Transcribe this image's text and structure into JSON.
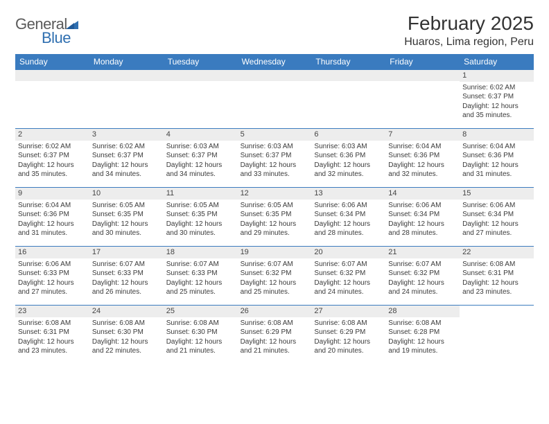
{
  "brand": {
    "part1": "General",
    "part2": "Blue"
  },
  "header": {
    "month_title": "February 2025",
    "location": "Huaros, Lima region, Peru"
  },
  "colors": {
    "header_bg": "#3a7bbf",
    "header_text": "#ffffff",
    "strip_bg": "#ededed",
    "rule": "#3a7bbf",
    "text": "#333333"
  },
  "weekdays": [
    "Sunday",
    "Monday",
    "Tuesday",
    "Wednesday",
    "Thursday",
    "Friday",
    "Saturday"
  ],
  "first_weekday_index": 6,
  "days": [
    {
      "n": 1,
      "sunrise": "6:02 AM",
      "sunset": "6:37 PM",
      "daylight": "12 hours and 35 minutes."
    },
    {
      "n": 2,
      "sunrise": "6:02 AM",
      "sunset": "6:37 PM",
      "daylight": "12 hours and 35 minutes."
    },
    {
      "n": 3,
      "sunrise": "6:02 AM",
      "sunset": "6:37 PM",
      "daylight": "12 hours and 34 minutes."
    },
    {
      "n": 4,
      "sunrise": "6:03 AM",
      "sunset": "6:37 PM",
      "daylight": "12 hours and 34 minutes."
    },
    {
      "n": 5,
      "sunrise": "6:03 AM",
      "sunset": "6:37 PM",
      "daylight": "12 hours and 33 minutes."
    },
    {
      "n": 6,
      "sunrise": "6:03 AM",
      "sunset": "6:36 PM",
      "daylight": "12 hours and 32 minutes."
    },
    {
      "n": 7,
      "sunrise": "6:04 AM",
      "sunset": "6:36 PM",
      "daylight": "12 hours and 32 minutes."
    },
    {
      "n": 8,
      "sunrise": "6:04 AM",
      "sunset": "6:36 PM",
      "daylight": "12 hours and 31 minutes."
    },
    {
      "n": 9,
      "sunrise": "6:04 AM",
      "sunset": "6:36 PM",
      "daylight": "12 hours and 31 minutes."
    },
    {
      "n": 10,
      "sunrise": "6:05 AM",
      "sunset": "6:35 PM",
      "daylight": "12 hours and 30 minutes."
    },
    {
      "n": 11,
      "sunrise": "6:05 AM",
      "sunset": "6:35 PM",
      "daylight": "12 hours and 30 minutes."
    },
    {
      "n": 12,
      "sunrise": "6:05 AM",
      "sunset": "6:35 PM",
      "daylight": "12 hours and 29 minutes."
    },
    {
      "n": 13,
      "sunrise": "6:06 AM",
      "sunset": "6:34 PM",
      "daylight": "12 hours and 28 minutes."
    },
    {
      "n": 14,
      "sunrise": "6:06 AM",
      "sunset": "6:34 PM",
      "daylight": "12 hours and 28 minutes."
    },
    {
      "n": 15,
      "sunrise": "6:06 AM",
      "sunset": "6:34 PM",
      "daylight": "12 hours and 27 minutes."
    },
    {
      "n": 16,
      "sunrise": "6:06 AM",
      "sunset": "6:33 PM",
      "daylight": "12 hours and 27 minutes."
    },
    {
      "n": 17,
      "sunrise": "6:07 AM",
      "sunset": "6:33 PM",
      "daylight": "12 hours and 26 minutes."
    },
    {
      "n": 18,
      "sunrise": "6:07 AM",
      "sunset": "6:33 PM",
      "daylight": "12 hours and 25 minutes."
    },
    {
      "n": 19,
      "sunrise": "6:07 AM",
      "sunset": "6:32 PM",
      "daylight": "12 hours and 25 minutes."
    },
    {
      "n": 20,
      "sunrise": "6:07 AM",
      "sunset": "6:32 PM",
      "daylight": "12 hours and 24 minutes."
    },
    {
      "n": 21,
      "sunrise": "6:07 AM",
      "sunset": "6:32 PM",
      "daylight": "12 hours and 24 minutes."
    },
    {
      "n": 22,
      "sunrise": "6:08 AM",
      "sunset": "6:31 PM",
      "daylight": "12 hours and 23 minutes."
    },
    {
      "n": 23,
      "sunrise": "6:08 AM",
      "sunset": "6:31 PM",
      "daylight": "12 hours and 23 minutes."
    },
    {
      "n": 24,
      "sunrise": "6:08 AM",
      "sunset": "6:30 PM",
      "daylight": "12 hours and 22 minutes."
    },
    {
      "n": 25,
      "sunrise": "6:08 AM",
      "sunset": "6:30 PM",
      "daylight": "12 hours and 21 minutes."
    },
    {
      "n": 26,
      "sunrise": "6:08 AM",
      "sunset": "6:29 PM",
      "daylight": "12 hours and 21 minutes."
    },
    {
      "n": 27,
      "sunrise": "6:08 AM",
      "sunset": "6:29 PM",
      "daylight": "12 hours and 20 minutes."
    },
    {
      "n": 28,
      "sunrise": "6:08 AM",
      "sunset": "6:28 PM",
      "daylight": "12 hours and 19 minutes."
    }
  ],
  "labels": {
    "sunrise": "Sunrise:",
    "sunset": "Sunset:",
    "daylight": "Daylight:"
  }
}
